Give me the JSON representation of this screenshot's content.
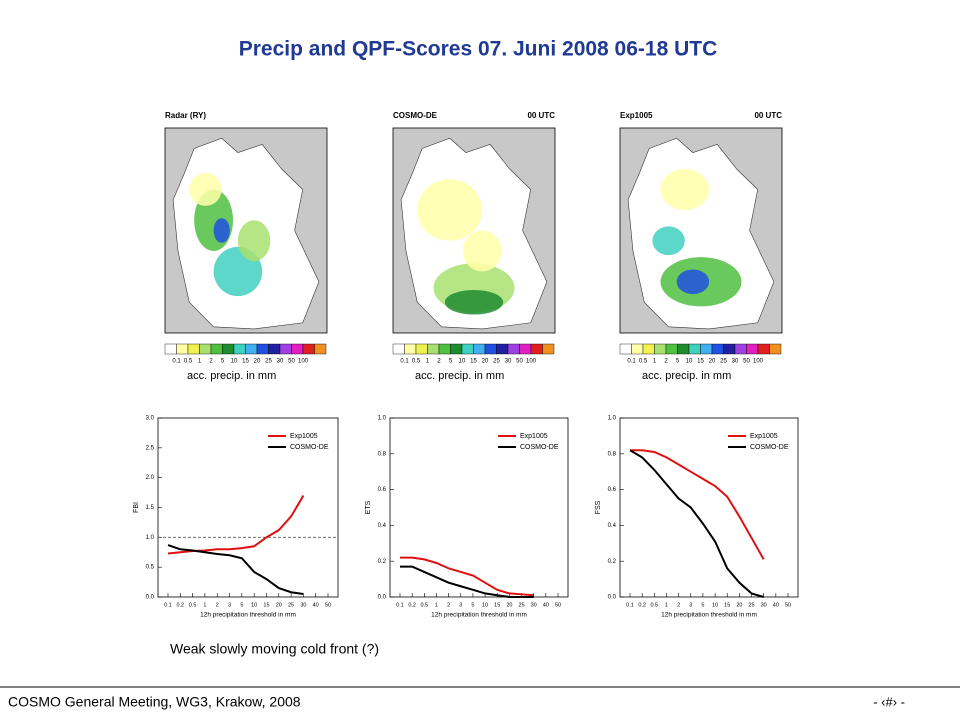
{
  "title": "Precip and QPF-Scores 07. Juni 2008 06-18 UTC",
  "maps": [
    {
      "label": "Radar (RY)"
    },
    {
      "label": "COSMO-DE",
      "time": "00 UTC"
    },
    {
      "label": "Exp1005",
      "time": "00 UTC"
    }
  ],
  "colorbar": {
    "labels": [
      "0.1",
      "0.5",
      "1",
      "2",
      "5",
      "10",
      "15",
      "20",
      "25",
      "30",
      "50",
      "100"
    ],
    "colors": [
      "#ffffff",
      "#ffffa8",
      "#f0f050",
      "#a8e070",
      "#50c040",
      "#208c30",
      "#40d0c0",
      "#40b0f0",
      "#2050e0",
      "#2020a0",
      "#a040e0",
      "#e020c0",
      "#e02020",
      "#f09020"
    ],
    "caption": "acc. precip. in mm"
  },
  "caption": "Weak slowly moving cold front (?)",
  "footer": {
    "left": "COSMO General Meeting, WG3, Krakow, 2008",
    "right": "- ‹#› -"
  },
  "chart_data": [
    {
      "type": "line",
      "ylabel": "FBI",
      "xlabel": "12h precipitation threshold in mm",
      "categories": [
        "0.1",
        "0.2",
        "0.5",
        "1",
        "2",
        "3",
        "5",
        "10",
        "15",
        "20",
        "25",
        "30",
        "40",
        "50"
      ],
      "ylim": [
        0,
        3
      ],
      "yticks": [
        {
          "value": 0,
          "label": "0.0"
        },
        {
          "value": 0.5,
          "label": "0.5"
        },
        {
          "value": 1,
          "label": "1.0"
        },
        {
          "value": 1.5,
          "label": "1.5"
        },
        {
          "value": 2,
          "label": "2.0"
        },
        {
          "value": 2.5,
          "label": "2.5"
        },
        {
          "value": 3,
          "label": "3.0"
        }
      ],
      "reference_line": 1,
      "legend": "upper right",
      "series": [
        {
          "name": "Exp1005",
          "color": "#e01010",
          "values": [
            0.73,
            0.75,
            0.77,
            0.78,
            0.8,
            0.8,
            0.82,
            0.85,
            1.0,
            1.12,
            1.35,
            1.7,
            null,
            null
          ]
        },
        {
          "name": "COSMO-DE",
          "color": "#000000",
          "values": [
            0.87,
            0.8,
            0.78,
            0.75,
            0.72,
            0.7,
            0.65,
            0.42,
            0.3,
            0.15,
            0.08,
            0.05,
            null,
            null
          ]
        }
      ]
    },
    {
      "type": "line",
      "ylabel": "ETS",
      "xlabel": "12h precipitation threshold in mm",
      "categories": [
        "0.1",
        "0.2",
        "0.5",
        "1",
        "2",
        "3",
        "5",
        "10",
        "15",
        "20",
        "25",
        "30",
        "40",
        "50"
      ],
      "ylim": [
        0,
        1
      ],
      "yticks": [
        {
          "value": 0,
          "label": "0.0"
        },
        0.2,
        0.4,
        0.6,
        0.8,
        {
          "value": 1,
          "label": "1.0"
        }
      ],
      "legend": "upper right",
      "series": [
        {
          "name": "Exp1005",
          "color": "#e01010",
          "values": [
            0.22,
            0.22,
            0.21,
            0.19,
            0.16,
            0.14,
            0.12,
            0.08,
            0.04,
            0.02,
            0.015,
            0.01,
            null,
            null
          ]
        },
        {
          "name": "COSMO-DE",
          "color": "#000000",
          "values": [
            0.17,
            0.17,
            0.14,
            0.11,
            0.08,
            0.06,
            0.04,
            0.02,
            0.01,
            0,
            0,
            0,
            null,
            null
          ]
        }
      ]
    },
    {
      "type": "line",
      "ylabel": "FSS",
      "xlabel": "12h precipitation threshold in mm",
      "categories": [
        "0.1",
        "0.2",
        "0.5",
        "1",
        "2",
        "3",
        "5",
        "10",
        "15",
        "20",
        "25",
        "30",
        "40",
        "50"
      ],
      "ylim": [
        0,
        1
      ],
      "yticks": [
        {
          "value": 0,
          "label": "0.0"
        },
        0.2,
        0.4,
        0.6,
        0.8,
        {
          "value": 1,
          "label": "1.0"
        }
      ],
      "legend": "upper right",
      "series": [
        {
          "name": "Exp1005",
          "color": "#e01010",
          "values": [
            0.82,
            0.82,
            0.81,
            0.78,
            0.74,
            0.7,
            0.66,
            0.62,
            0.56,
            0.45,
            0.33,
            0.21,
            null,
            null
          ]
        },
        {
          "name": "COSMO-DE",
          "color": "#000000",
          "values": [
            0.82,
            0.78,
            0.71,
            0.63,
            0.55,
            0.5,
            0.41,
            0.31,
            0.16,
            0.08,
            0.02,
            0,
            null,
            null
          ]
        }
      ]
    }
  ]
}
